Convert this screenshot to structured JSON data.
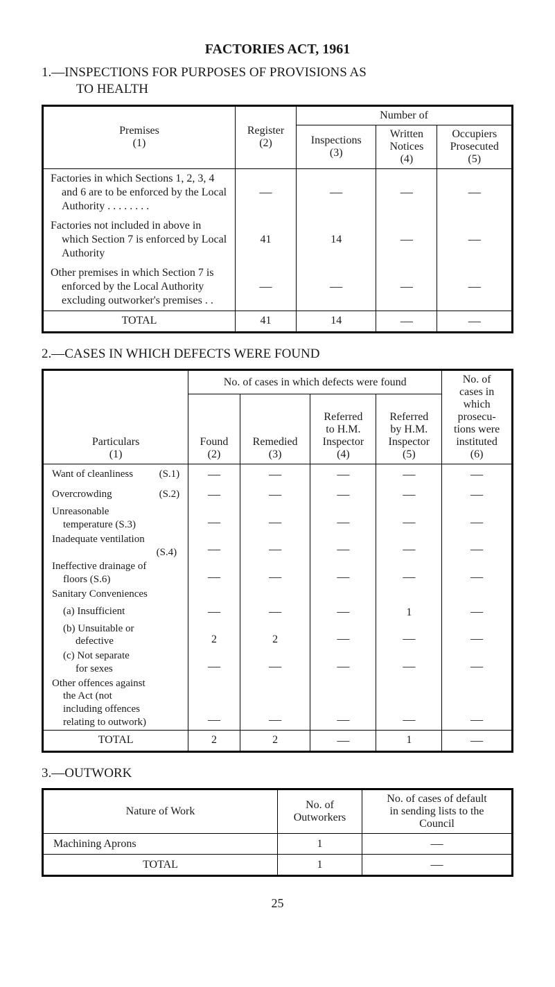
{
  "title": "FACTORIES ACT, 1961",
  "section1": {
    "heading_num": "1.",
    "heading_text": "—INSPECTIONS FOR PURPOSES OF PROVISIONS AS",
    "heading_cont": "TO HEALTH",
    "header": {
      "number_of": "Number of",
      "premises": "Premises",
      "premises_num": "(1)",
      "register": "Register",
      "register_num": "(2)",
      "inspections": "Inspections",
      "inspections_num": "(3)",
      "written": "Written",
      "notices": "Notices",
      "written_num": "(4)",
      "occupiers": "Occupiers",
      "prosecuted": "Prosecuted",
      "occupiers_num": "(5)"
    },
    "rows": {
      "row1_label": "Factories in which Sections 1, 2, 3, 4 and 6 are to be enforced by the Local Authority . .     . .     . .     . .",
      "row1_vals": [
        "—",
        "—",
        "—",
        "—"
      ],
      "row2_label": "Factories not included in above in which Section 7 is enforced by Local Authority",
      "row2_vals": [
        "41",
        "14",
        "—",
        "—"
      ],
      "row3_label": "Other premises in which Section 7 is enforced by the Local Authority excluding outworker's premises    . .",
      "row3_vals": [
        "—",
        "—",
        "—",
        "—"
      ]
    },
    "total_label": "TOTAL",
    "total_vals": [
      "41",
      "14",
      "—",
      "—"
    ]
  },
  "section2": {
    "heading_num": "2.",
    "heading_text": "—CASES IN WHICH DEFECTS WERE FOUND",
    "header": {
      "span_label": "No. of cases in which defects were found",
      "col6_a": "No. of",
      "col6_b": "cases in",
      "col6_c": "which",
      "col6_d": "prosecu-",
      "col6_e": "tions were",
      "col6_f": "instituted",
      "col6_g": "(6)",
      "particulars": "Particulars",
      "particulars_num": "(1)",
      "found": "Found",
      "found_num": "(2)",
      "remedied": "Remedied",
      "remedied_num": "(3)",
      "ref_hm_a": "Referred",
      "ref_hm_b": "to H.M.",
      "ref_hm_c": "Inspector",
      "ref_hm_num": "(4)",
      "ref_by_a": "Referred",
      "ref_by_b": "by H.M.",
      "ref_by_c": "Inspector",
      "ref_by_num": "(5)"
    },
    "rows": [
      {
        "label": "Want of cleanliness",
        "suffix": "(S.1)",
        "vals": [
          "—",
          "—",
          "—",
          "—",
          "—"
        ]
      },
      {
        "label": "Overcrowding",
        "suffix": "(S.2)",
        "vals": [
          "—",
          "—",
          "—",
          "—",
          "—"
        ]
      },
      {
        "label": "Unreasonable temperature",
        "suffix": "(S.3)",
        "vals": [
          "—",
          "—",
          "—",
          "—",
          "—"
        ],
        "twoLine": true,
        "line1": "Unreasonable",
        "line2": "temperature    (S.3)"
      },
      {
        "label": "Inadequate ventilation",
        "suffix": "(S.4)",
        "vals": [
          "—",
          "—",
          "—",
          "—",
          "—"
        ],
        "twoLine": true,
        "line1": "Inadequate ventilation",
        "line2": "(S.4)",
        "line2_right": true
      },
      {
        "label": "Ineffective drainage of floors",
        "suffix": "(S.6)",
        "vals": [
          "—",
          "—",
          "—",
          "—",
          "—"
        ],
        "twoLine": true,
        "line1": "Ineffective drainage of",
        "line2": "floors            (S.6)"
      },
      {
        "label": "Sanitary Conveniences",
        "headerOnly": true
      },
      {
        "label": "(a) Insufficient",
        "vals": [
          "—",
          "—",
          "—",
          "1",
          "—"
        ],
        "indent": true
      },
      {
        "label": "(b) Unsuitable or defective",
        "vals": [
          "2",
          "2",
          "—",
          "—",
          "—"
        ],
        "twoLine": true,
        "line1": "(b) Unsuitable or",
        "line2": "defective",
        "indent": true
      },
      {
        "label": "(c) Not separate for sexes",
        "vals": [
          "—",
          "—",
          "—",
          "—",
          "—"
        ],
        "twoLine": true,
        "line1": "(c) Not separate",
        "line2": "for sexes",
        "indent": true
      },
      {
        "label": "Other offences against the Act (not including offences relating to outwork)",
        "vals": [
          "—",
          "—",
          "—",
          "—",
          "—"
        ],
        "multiLine": [
          "Other offences against",
          "the Act (not",
          "including offences",
          "relating to outwork)"
        ]
      }
    ],
    "total_label": "TOTAL",
    "total_vals": [
      "2",
      "2",
      "—",
      "1",
      "—"
    ]
  },
  "section3": {
    "heading_num": "3.",
    "heading_text": "—OUTWORK",
    "header": {
      "nature": "Nature of Work",
      "outworkers_a": "No. of",
      "outworkers_b": "Outworkers",
      "default_a": "No. of cases of default",
      "default_b": "in sending lists to the",
      "default_c": "Council"
    },
    "row_label": "Machining Aprons",
    "row_vals": [
      "1",
      "—"
    ],
    "total_label": "TOTAL",
    "total_vals": [
      "1",
      "—"
    ]
  },
  "page_number": "25"
}
